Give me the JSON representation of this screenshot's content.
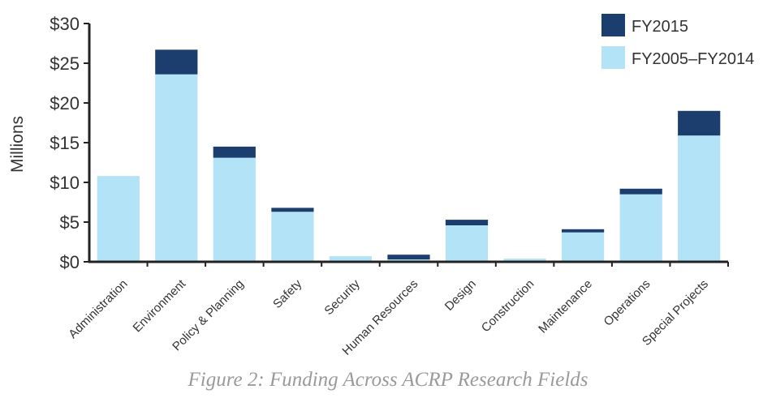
{
  "caption": "Figure 2: Funding Across ACRP Research Fields",
  "chart_data": {
    "type": "bar",
    "stacked": true,
    "title": "",
    "xlabel": "",
    "ylabel": "Millions",
    "ylim": [
      0,
      30
    ],
    "yticks": [
      0,
      5,
      10,
      15,
      20,
      25,
      30
    ],
    "ytick_labels": [
      "$0",
      "$5",
      "$10",
      "$15",
      "$20",
      "$25",
      "$30"
    ],
    "grid": false,
    "legend_position": "top-right",
    "categories": [
      "Administration",
      "Environment",
      "Policy & Planning",
      "Safety",
      "Security",
      "Human Resources",
      "Design",
      "Construction",
      "Maintenance",
      "Operations",
      "Special Projects"
    ],
    "series": [
      {
        "name": "FY2005–FY2014",
        "color": "#b3e3f7",
        "values": [
          10.8,
          23.6,
          13.1,
          6.3,
          0.7,
          0.3,
          4.6,
          0.4,
          3.7,
          8.5,
          15.9
        ]
      },
      {
        "name": "FY2015",
        "color": "#1b3e6f",
        "values": [
          0.0,
          3.1,
          1.4,
          0.5,
          0.0,
          0.6,
          0.7,
          0.0,
          0.4,
          0.7,
          3.1
        ]
      }
    ],
    "legend_order": [
      1,
      0
    ]
  }
}
